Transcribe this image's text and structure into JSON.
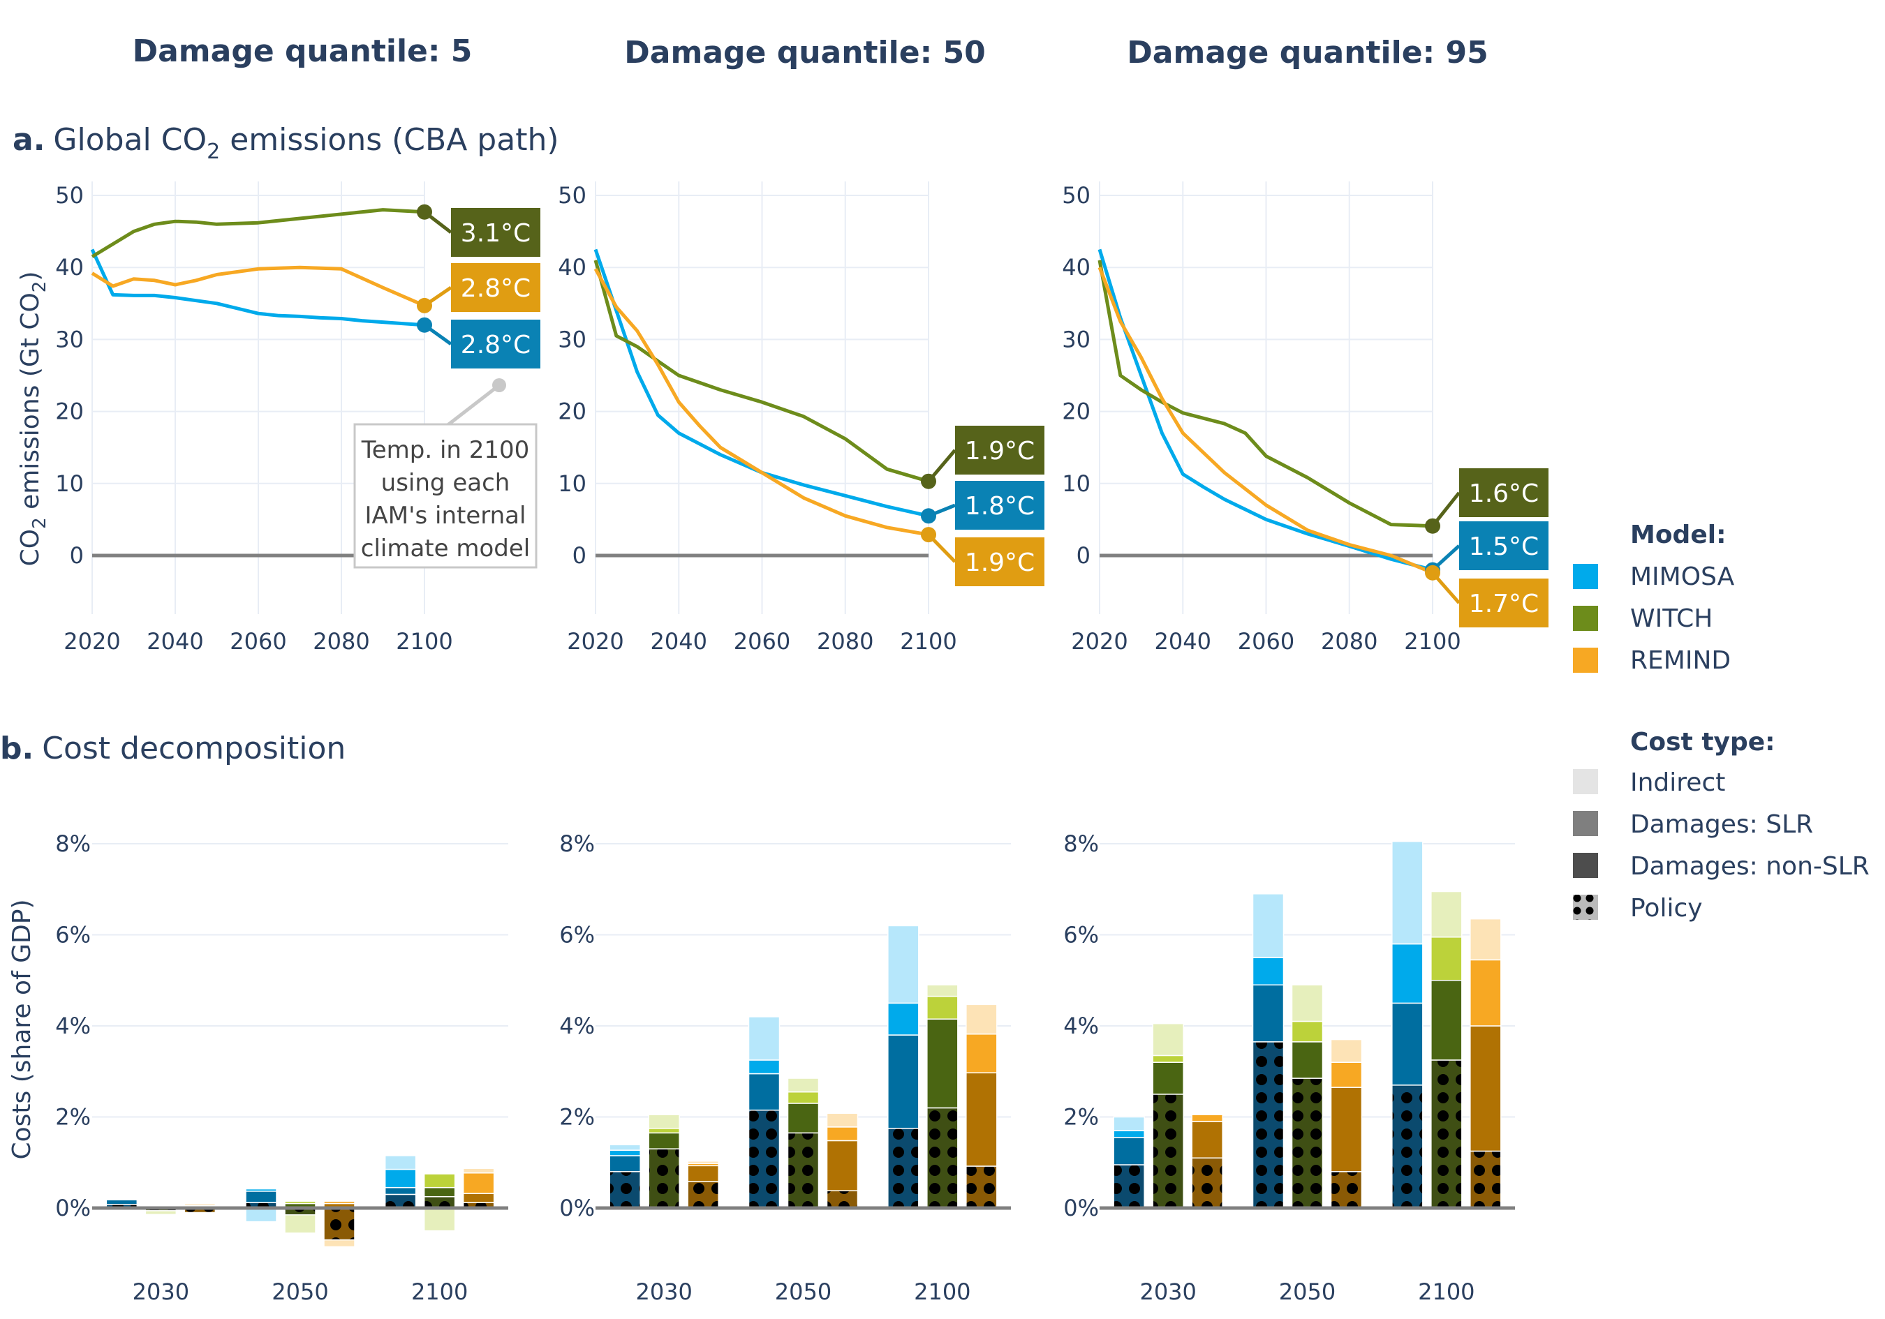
{
  "column_titles": [
    "Damage quantile: 5",
    "Damage quantile: 50",
    "Damage quantile: 95"
  ],
  "section_a": {
    "letter": "a.",
    "title_pre": "Global CO",
    "title_sub": "2",
    "title_post": " emissions (CBA path)"
  },
  "section_b": {
    "letter": "b.",
    "title": "Cost decomposition"
  },
  "colors": {
    "MIMOSA": [
      "#00aaeb",
      "#006ea0",
      "#00aaeb",
      "#b6e7fb"
    ],
    "WITCH": [
      "#6d8c1b",
      "#4a6512",
      "#bcd23a",
      "#e6efbc"
    ],
    "REMIND": [
      "#f7a823",
      "#b07203",
      "#f7a823",
      "#fde3b6"
    ],
    "temp_label_bg": {
      "MIMOSA": "#0a82b4",
      "WITCH": "#56631a",
      "REMIND": "#e09d12"
    },
    "zero_line": "#808080",
    "grid": "#e8edf5"
  },
  "legend": {
    "model_title": "Model:",
    "models": [
      "MIMOSA",
      "WITCH",
      "REMIND"
    ],
    "cost_title": "Cost type:",
    "cost_types": [
      "Indirect",
      "Damages: SLR",
      "Damages: non-SLR",
      "Policy"
    ]
  },
  "annotation": [
    "Temp. in 2100",
    "using each",
    "IAM's internal",
    "climate model"
  ],
  "chart_data": [
    {
      "type": "line",
      "panel": "a",
      "title": "Damage quantile: 5",
      "ylabel": "CO2 emissions (Gt CO2)",
      "xlim": [
        2020,
        2100
      ],
      "ylim": [
        -10,
        52
      ],
      "xticks": [
        2020,
        2040,
        2060,
        2080,
        2100
      ],
      "yticks": [
        0,
        10,
        20,
        30,
        40,
        50
      ],
      "series": [
        {
          "name": "MIMOSA",
          "x": [
            2020,
            2025,
            2030,
            2035,
            2040,
            2045,
            2050,
            2055,
            2060,
            2065,
            2070,
            2075,
            2080,
            2085,
            2090,
            2095,
            2100
          ],
          "y": [
            42.5,
            36.2,
            36.1,
            36.1,
            35.8,
            35.4,
            35.0,
            34.3,
            33.6,
            33.3,
            33.2,
            33.0,
            32.9,
            32.6,
            32.4,
            32.2,
            32.0
          ]
        },
        {
          "name": "WITCH",
          "x": [
            2020,
            2030,
            2035,
            2040,
            2045,
            2050,
            2060,
            2070,
            2080,
            2090,
            2100
          ],
          "y": [
            41.5,
            45.0,
            46.0,
            46.4,
            46.3,
            46.0,
            46.2,
            46.8,
            47.4,
            48.0,
            47.7
          ]
        },
        {
          "name": "REMIND",
          "x": [
            2020,
            2025,
            2030,
            2035,
            2040,
            2045,
            2050,
            2060,
            2070,
            2080,
            2090,
            2100
          ],
          "y": [
            39.2,
            37.4,
            38.4,
            38.2,
            37.6,
            38.2,
            39.0,
            39.8,
            40.0,
            39.8,
            37.2,
            34.7
          ]
        }
      ],
      "labels": [
        {
          "model": "WITCH",
          "text": "3.1°C"
        },
        {
          "model": "REMIND",
          "text": "2.8°C"
        },
        {
          "model": "MIMOSA",
          "text": "2.8°C"
        }
      ]
    },
    {
      "type": "line",
      "panel": "a",
      "title": "Damage quantile: 50",
      "xlim": [
        2020,
        2100
      ],
      "ylim": [
        -10,
        52
      ],
      "xticks": [
        2020,
        2040,
        2060,
        2080,
        2100
      ],
      "yticks": [
        0,
        10,
        20,
        30,
        40,
        50
      ],
      "series": [
        {
          "name": "MIMOSA",
          "x": [
            2020,
            2025,
            2030,
            2035,
            2040,
            2050,
            2060,
            2070,
            2080,
            2090,
            2100
          ],
          "y": [
            42.5,
            34.0,
            25.5,
            19.5,
            17.0,
            14.0,
            11.5,
            9.8,
            8.3,
            6.8,
            5.5
          ]
        },
        {
          "name": "WITCH",
          "x": [
            2020,
            2025,
            2030,
            2035,
            2040,
            2050,
            2060,
            2070,
            2080,
            2090,
            2100
          ],
          "y": [
            41.0,
            30.5,
            29.0,
            27.0,
            25.0,
            23.0,
            21.3,
            19.3,
            16.2,
            12.0,
            10.3
          ]
        },
        {
          "name": "REMIND",
          "x": [
            2020,
            2025,
            2030,
            2035,
            2040,
            2045,
            2050,
            2060,
            2070,
            2080,
            2090,
            2100
          ],
          "y": [
            39.8,
            34.5,
            31.2,
            26.5,
            21.3,
            18.0,
            15.0,
            11.5,
            8.0,
            5.5,
            3.9,
            2.9
          ]
        }
      ],
      "labels": [
        {
          "model": "WITCH",
          "text": "1.9°C"
        },
        {
          "model": "MIMOSA",
          "text": "1.8°C"
        },
        {
          "model": "REMIND",
          "text": "1.9°C"
        }
      ]
    },
    {
      "type": "line",
      "panel": "a",
      "title": "Damage quantile: 95",
      "xlim": [
        2020,
        2100
      ],
      "ylim": [
        -10,
        52
      ],
      "xticks": [
        2020,
        2040,
        2060,
        2080,
        2100
      ],
      "yticks": [
        0,
        10,
        20,
        30,
        40,
        50
      ],
      "series": [
        {
          "name": "MIMOSA",
          "x": [
            2020,
            2025,
            2030,
            2035,
            2040,
            2045,
            2050,
            2060,
            2070,
            2080,
            2090,
            2100
          ],
          "y": [
            42.5,
            33.0,
            25.0,
            17.0,
            11.3,
            9.5,
            7.8,
            5.0,
            3.0,
            1.3,
            -0.5,
            -2.0
          ]
        },
        {
          "name": "WITCH",
          "x": [
            2020,
            2025,
            2030,
            2035,
            2040,
            2050,
            2055,
            2060,
            2070,
            2080,
            2090,
            2100
          ],
          "y": [
            41.0,
            25.0,
            23.0,
            21.3,
            19.8,
            18.3,
            17.0,
            13.8,
            10.8,
            7.3,
            4.3,
            4.1
          ]
        },
        {
          "name": "REMIND",
          "x": [
            2020,
            2025,
            2030,
            2035,
            2040,
            2050,
            2060,
            2070,
            2080,
            2090,
            2100
          ],
          "y": [
            40.0,
            32.5,
            27.5,
            21.8,
            17.0,
            11.5,
            7.0,
            3.5,
            1.5,
            0.0,
            -2.4
          ]
        }
      ],
      "labels": [
        {
          "model": "WITCH",
          "text": "1.6°C"
        },
        {
          "model": "MIMOSA",
          "text": "1.5°C"
        },
        {
          "model": "REMIND",
          "text": "1.7°C"
        }
      ]
    },
    {
      "type": "bar",
      "panel": "b",
      "title": "Damage quantile: 5",
      "ylabel": "Costs (share of GDP)",
      "categories": [
        "2030",
        "2050",
        "2100"
      ],
      "ylim": [
        -1.3,
        8.4
      ],
      "yticks": [
        0,
        2,
        4,
        6,
        8
      ],
      "stack_order": [
        "Policy",
        "Damages: non-SLR",
        "Damages: SLR",
        "Indirect"
      ],
      "series": [
        {
          "model": "MIMOSA",
          "values": {
            "Policy": [
              0.08,
              0.12,
              0.3
            ],
            "Damages: non-SLR": [
              0.1,
              0.25,
              0.15
            ],
            "Damages: SLR": [
              0.0,
              0.05,
              0.4
            ],
            "Indirect": [
              0.0,
              -0.3,
              0.3
            ]
          }
        },
        {
          "model": "WITCH",
          "values": {
            "Policy": [
              -0.06,
              -0.15,
              0.25
            ],
            "Damages: non-SLR": [
              0.05,
              0.1,
              0.2
            ],
            "Damages: SLR": [
              0.02,
              0.05,
              0.3
            ],
            "Indirect": [
              -0.08,
              -0.4,
              -0.5
            ]
          }
        },
        {
          "model": "REMIND",
          "values": {
            "Policy": [
              -0.1,
              -0.7,
              0.12
            ],
            "Damages: non-SLR": [
              0.05,
              0.1,
              0.2
            ],
            "Damages: SLR": [
              0.03,
              0.05,
              0.45
            ],
            "Indirect": [
              0.0,
              -0.15,
              0.1
            ]
          }
        }
      ]
    },
    {
      "type": "bar",
      "panel": "b",
      "title": "Damage quantile: 50",
      "categories": [
        "2030",
        "2050",
        "2100"
      ],
      "ylim": [
        -1.3,
        8.4
      ],
      "yticks": [
        0,
        2,
        4,
        6,
        8
      ],
      "stack_order": [
        "Policy",
        "Damages: non-SLR",
        "Damages: SLR",
        "Indirect"
      ],
      "series": [
        {
          "model": "MIMOSA",
          "values": {
            "Policy": [
              0.8,
              2.15,
              1.75
            ],
            "Damages: non-SLR": [
              0.35,
              0.8,
              2.05
            ],
            "Damages: SLR": [
              0.12,
              0.3,
              0.7
            ],
            "Indirect": [
              0.12,
              0.95,
              1.7
            ]
          }
        },
        {
          "model": "WITCH",
          "values": {
            "Policy": [
              1.3,
              1.65,
              2.2
            ],
            "Damages: non-SLR": [
              0.35,
              0.65,
              1.95
            ],
            "Damages: SLR": [
              0.1,
              0.25,
              0.5
            ],
            "Indirect": [
              0.3,
              0.3,
              0.25
            ]
          }
        },
        {
          "model": "REMIND",
          "values": {
            "Policy": [
              0.58,
              0.38,
              0.92
            ],
            "Damages: non-SLR": [
              0.35,
              1.1,
              2.05
            ],
            "Damages: SLR": [
              0.05,
              0.3,
              0.85
            ],
            "Indirect": [
              0.05,
              0.3,
              0.65
            ]
          }
        }
      ]
    },
    {
      "type": "bar",
      "panel": "b",
      "title": "Damage quantile: 95",
      "categories": [
        "2030",
        "2050",
        "2100"
      ],
      "ylim": [
        -1.3,
        8.4
      ],
      "yticks": [
        0,
        2,
        4,
        6,
        8
      ],
      "stack_order": [
        "Policy",
        "Damages: non-SLR",
        "Damages: SLR",
        "Indirect"
      ],
      "series": [
        {
          "model": "MIMOSA",
          "values": {
            "Policy": [
              0.95,
              3.65,
              2.7
            ],
            "Damages: non-SLR": [
              0.6,
              1.25,
              1.8
            ],
            "Damages: SLR": [
              0.15,
              0.6,
              1.3
            ],
            "Indirect": [
              0.3,
              1.4,
              2.25
            ]
          }
        },
        {
          "model": "WITCH",
          "values": {
            "Policy": [
              2.5,
              2.85,
              3.25
            ],
            "Damages: non-SLR": [
              0.7,
              0.8,
              1.75
            ],
            "Damages: SLR": [
              0.15,
              0.45,
              0.95
            ],
            "Indirect": [
              0.7,
              0.8,
              1.0
            ]
          }
        },
        {
          "model": "REMIND",
          "values": {
            "Policy": [
              1.1,
              0.8,
              1.25
            ],
            "Damages: non-SLR": [
              0.8,
              1.85,
              2.75
            ],
            "Damages: SLR": [
              0.15,
              0.55,
              1.45
            ],
            "Indirect": [
              0.0,
              0.5,
              0.9
            ]
          }
        }
      ]
    }
  ]
}
